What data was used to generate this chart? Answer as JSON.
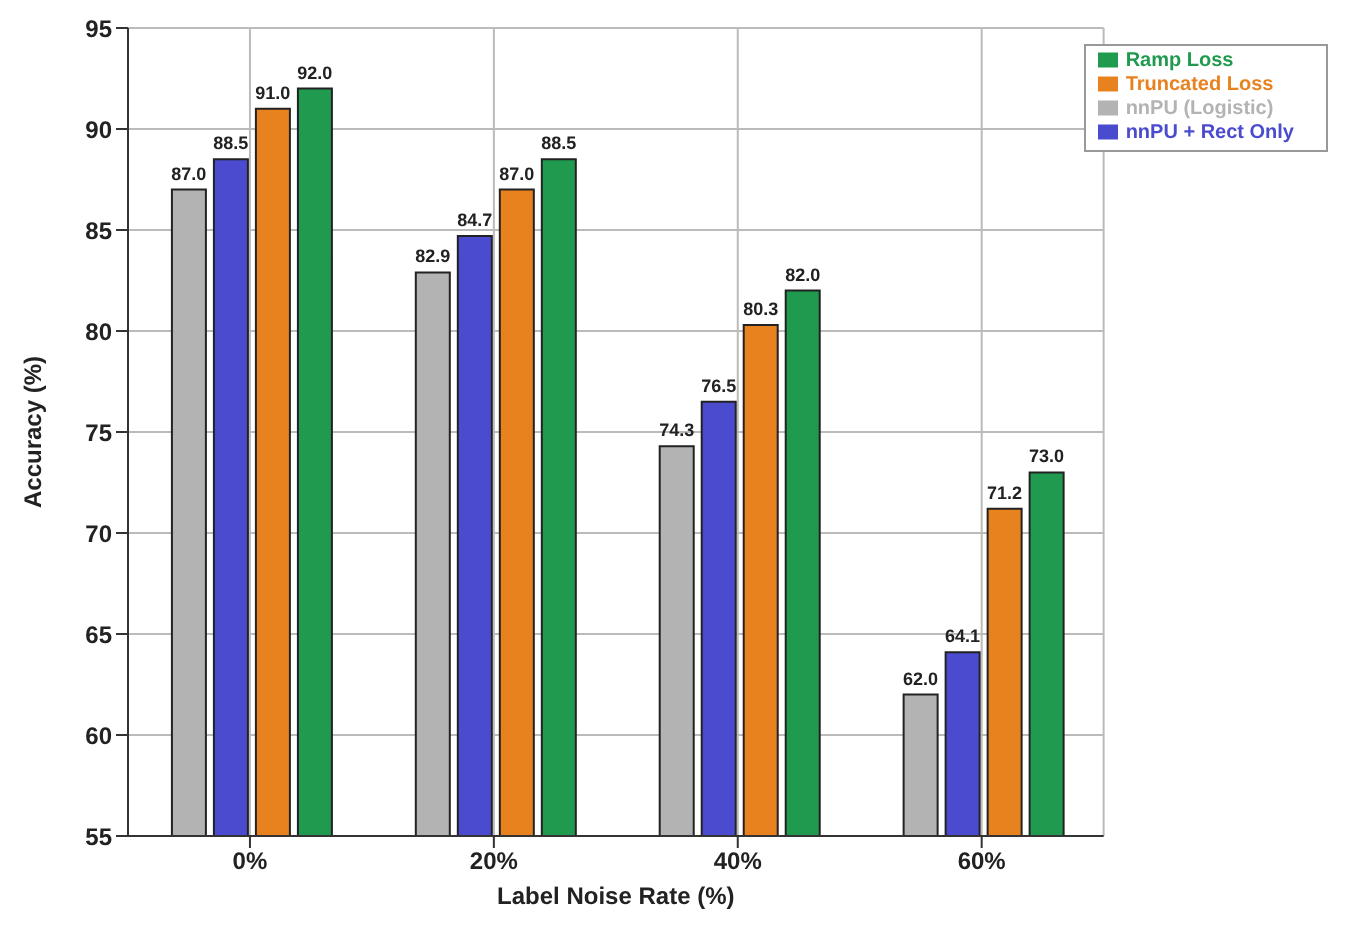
{
  "chart_data": {
    "type": "bar",
    "xlabel": "Label Noise Rate (%)",
    "ylabel": "Accuracy (%)",
    "categories": [
      "0%",
      "20%",
      "40%",
      "60%"
    ],
    "series": [
      {
        "name": "nnPU (Logistic)",
        "color": "#b3b3b3",
        "values": [
          87.0,
          82.9,
          74.3,
          62.0
        ],
        "value_labels": [
          "87.0",
          "82.9",
          "74.3",
          "62.0"
        ]
      },
      {
        "name": "nnPU + Rect Only",
        "color": "#4b4bcf",
        "values": [
          88.5,
          84.7,
          76.5,
          64.1
        ],
        "value_labels": [
          "88.5",
          "84.7",
          "76.5",
          "64.1"
        ]
      },
      {
        "name": "Truncated Loss",
        "color": "#e8821e",
        "values": [
          91.0,
          87.0,
          80.3,
          71.2
        ],
        "value_labels": [
          "91.0",
          "87.0",
          "80.3",
          "71.2"
        ]
      },
      {
        "name": "Ramp Loss",
        "color": "#1f9a4e",
        "values": [
          92.0,
          88.5,
          82.0,
          73.0
        ],
        "value_labels": [
          "92.0",
          "88.5",
          "82.0",
          "73.0"
        ]
      }
    ],
    "ylim": [
      55,
      95
    ],
    "yticks": [
      55,
      60,
      65,
      70,
      75,
      80,
      85,
      90,
      95
    ],
    "grid": true,
    "legend": "top right"
  }
}
